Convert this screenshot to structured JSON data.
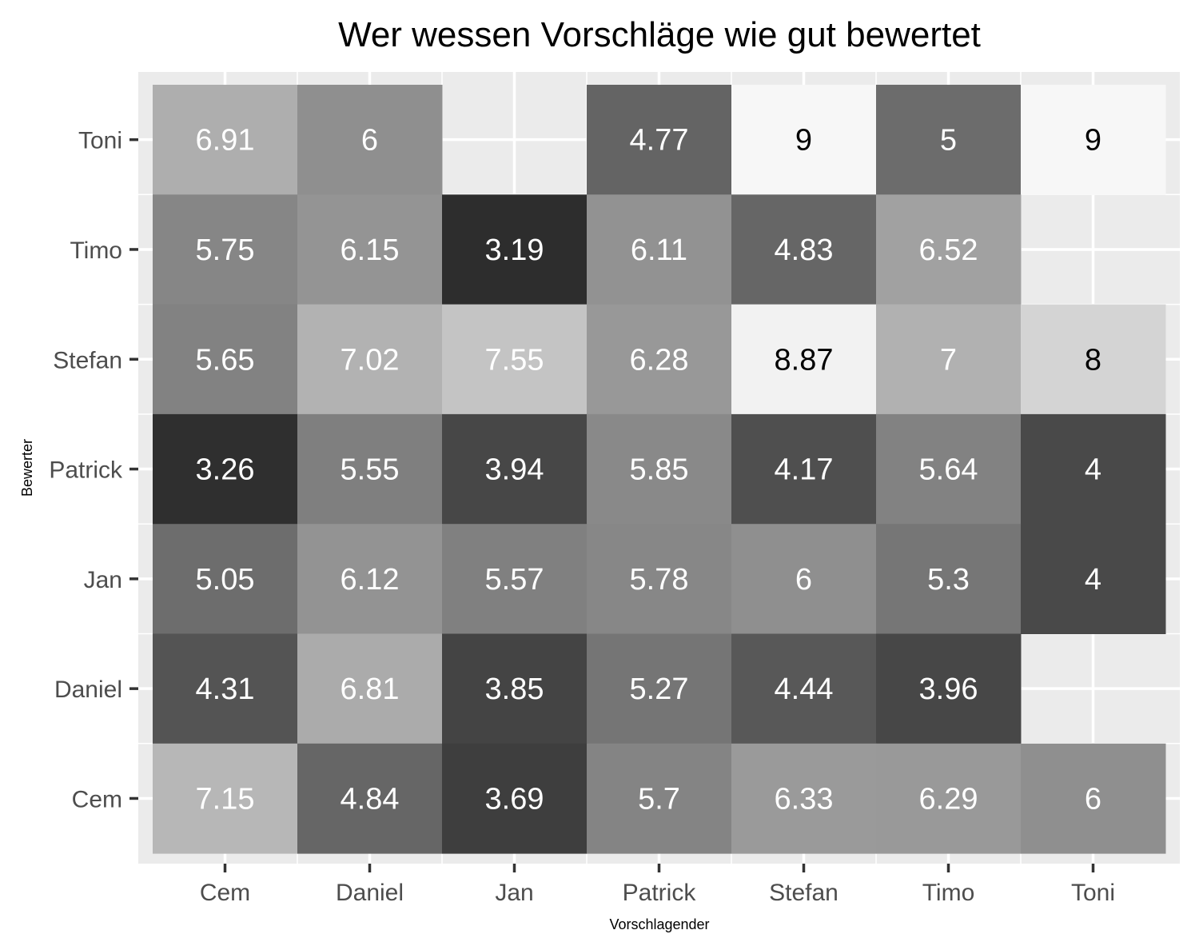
{
  "chart_data": {
    "type": "heatmap",
    "title": "Wer wessen Vorschläge wie gut bewertet",
    "xlabel": "Vorschlagender",
    "ylabel": "Bewerter",
    "x_categories": [
      "Cem",
      "Daniel",
      "Jan",
      "Patrick",
      "Stefan",
      "Timo",
      "Toni"
    ],
    "y_categories": [
      "Cem",
      "Daniel",
      "Jan",
      "Patrick",
      "Stefan",
      "Timo",
      "Toni"
    ],
    "value_range": [
      3,
      9
    ],
    "colors": {
      "low": "#262626",
      "high": "#f7f7f7",
      "panel_background": "#ebebeb",
      "grid": "#ffffff",
      "label_light": "#ffffff",
      "label_dark": "#000000"
    },
    "grid": true,
    "legend": "none",
    "cells": [
      {
        "y": "Toni",
        "values": [
          6.91,
          6,
          null,
          4.77,
          9,
          5,
          9
        ]
      },
      {
        "y": "Timo",
        "values": [
          5.75,
          6.15,
          3.19,
          6.11,
          4.83,
          6.52,
          null
        ]
      },
      {
        "y": "Stefan",
        "values": [
          5.65,
          7.02,
          7.55,
          6.28,
          8.87,
          7,
          8
        ]
      },
      {
        "y": "Patrick",
        "values": [
          3.26,
          5.55,
          3.94,
          5.85,
          4.17,
          5.64,
          4
        ]
      },
      {
        "y": "Jan",
        "values": [
          5.05,
          6.12,
          5.57,
          5.78,
          6,
          5.3,
          4
        ]
      },
      {
        "y": "Daniel",
        "values": [
          4.31,
          6.81,
          3.85,
          5.27,
          4.44,
          3.96,
          null
        ]
      },
      {
        "y": "Cem",
        "values": [
          7.15,
          4.84,
          3.69,
          5.7,
          6.33,
          6.29,
          6
        ]
      }
    ]
  }
}
